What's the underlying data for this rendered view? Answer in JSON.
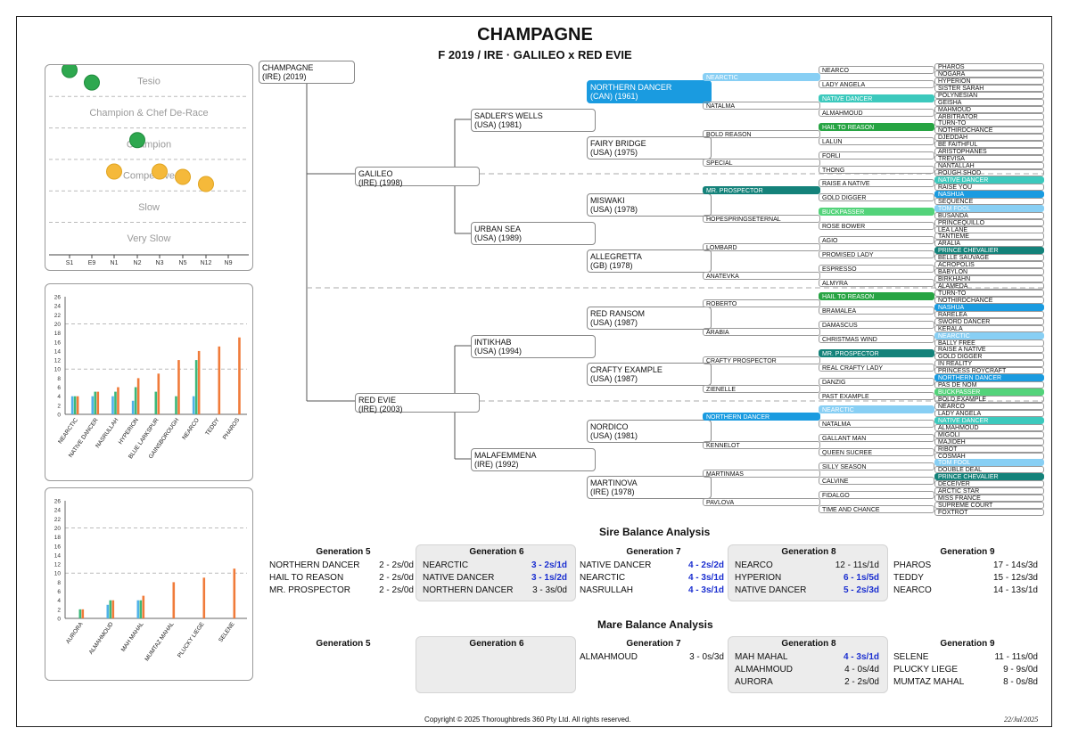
{
  "title": "CHAMPAGNE",
  "subtitle": "F 2019 / IRE · GALILEO x RED EVIE",
  "colors": {
    "blue": "#1a9be0",
    "lightblue": "#88cff4",
    "green": "#27a443",
    "lightgreen": "#53d37a",
    "teal": "#14827a",
    "aqua": "#3cc9bd"
  },
  "class_chart": {
    "bands": [
      "Tesio",
      "Champion & Chef De-Race",
      "Champion",
      "Competitive",
      "Slow",
      "Very Slow"
    ],
    "x_labels": [
      "S1",
      "E9",
      "N1",
      "N2",
      "N3",
      "N5",
      "N12",
      "N9"
    ],
    "dots": [
      {
        "x": "S1",
        "band": 0,
        "pos": "above",
        "color": "green"
      },
      {
        "x": "E9",
        "band": 0,
        "pos": "mid",
        "color": "green"
      },
      {
        "x": "N2",
        "band": 2,
        "pos": "upper",
        "color": "green"
      },
      {
        "x": "N1",
        "band": 3,
        "pos": "upper",
        "color": "yellow"
      },
      {
        "x": "N3",
        "band": 3,
        "pos": "upper",
        "color": "yellow"
      },
      {
        "x": "N5",
        "band": 3,
        "pos": "mid",
        "color": "yellow"
      },
      {
        "x": "N12",
        "band": 3,
        "pos": "low",
        "color": "yellow"
      }
    ]
  },
  "chart_data": [
    {
      "type": "bar",
      "title": "",
      "ylim": [
        0,
        26
      ],
      "y_ticks": [
        0,
        2,
        4,
        6,
        8,
        10,
        12,
        14,
        16,
        18,
        20,
        22,
        24,
        26
      ],
      "categories": [
        "NEARCTIC",
        "NATIVE DANCER",
        "NASRULLAH",
        "HYPERION",
        "BLUE LARKSPUR",
        "GAINSBOROUGH",
        "NEARCO",
        "TEDDY",
        "PHAROS"
      ],
      "series": [
        {
          "name": "blue",
          "color": "#4fb2e8",
          "values": [
            4,
            4,
            4,
            3,
            0,
            0,
            4,
            0,
            0
          ]
        },
        {
          "name": "green",
          "color": "#3cb87a",
          "values": [
            4,
            5,
            5,
            6,
            5,
            4,
            12,
            0,
            0
          ]
        },
        {
          "name": "orange",
          "color": "#f07b3a",
          "values": [
            4,
            5,
            6,
            8,
            9,
            12,
            14,
            15,
            17
          ]
        }
      ]
    },
    {
      "type": "bar",
      "title": "",
      "ylim": [
        0,
        26
      ],
      "y_ticks": [
        0,
        2,
        4,
        6,
        8,
        10,
        12,
        14,
        16,
        18,
        20,
        22,
        24,
        26
      ],
      "categories": [
        "AURORA",
        "ALMAHMOUD",
        "MAH MAHAL",
        "MUMTAZ MAHAL",
        "PLUCKY LIEGE",
        "SELENE"
      ],
      "series": [
        {
          "name": "blue",
          "color": "#4fb2e8",
          "values": [
            0,
            3,
            4,
            0,
            0,
            0
          ]
        },
        {
          "name": "green",
          "color": "#3cb87a",
          "values": [
            2,
            4,
            4,
            0,
            0,
            0
          ]
        },
        {
          "name": "orange",
          "color": "#f07b3a",
          "values": [
            2,
            4,
            5,
            8,
            9,
            11
          ]
        }
      ]
    }
  ],
  "pedigree": {
    "gen0": {
      "name": "CHAMPAGNE",
      "meta": "(IRE) (2019)"
    },
    "gen1": [
      {
        "name": "GALILEO",
        "meta": "(IRE) (1998)"
      },
      {
        "name": "RED EVIE",
        "meta": "(IRE) (2003)"
      }
    ],
    "gen2": [
      {
        "name": "SADLER'S WELLS",
        "meta": "(USA) (1981)"
      },
      {
        "name": "URBAN SEA",
        "meta": "(USA) (1989)"
      },
      {
        "name": "INTIKHAB",
        "meta": "(USA) (1994)"
      },
      {
        "name": "MALAFEMMENA",
        "meta": "(IRE) (1992)"
      }
    ],
    "gen3": [
      {
        "name": "NORTHERN DANCER",
        "meta": "(CAN) (1961)",
        "hl": "blue"
      },
      {
        "name": "FAIRY BRIDGE",
        "meta": "(USA) (1975)"
      },
      {
        "name": "MISWAKI",
        "meta": "(USA) (1978)"
      },
      {
        "name": "ALLEGRETTA",
        "meta": "(GB) (1978)"
      },
      {
        "name": "RED RANSOM",
        "meta": "(USA) (1987)"
      },
      {
        "name": "CRAFTY EXAMPLE",
        "meta": "(USA) (1987)"
      },
      {
        "name": "NORDICO",
        "meta": "(USA) (1981)"
      },
      {
        "name": "MARTINOVA",
        "meta": "(IRE) (1978)"
      }
    ],
    "gen4": [
      {
        "name": "NEARCTIC",
        "hl": "lightblue"
      },
      {
        "name": "NATALMA"
      },
      {
        "name": "BOLD REASON"
      },
      {
        "name": "SPECIAL"
      },
      {
        "name": "MR. PROSPECTOR",
        "hl": "teal"
      },
      {
        "name": "HOPESPRINGSETERNAL"
      },
      {
        "name": "LOMBARD"
      },
      {
        "name": "ANATEVKA"
      },
      {
        "name": "ROBERTO"
      },
      {
        "name": "ARABIA"
      },
      {
        "name": "CRAFTY PROSPECTOR"
      },
      {
        "name": "ZIENELLE"
      },
      {
        "name": "NORTHERN DANCER",
        "hl": "blue"
      },
      {
        "name": "KENNELOT"
      },
      {
        "name": "MARTINMAS"
      },
      {
        "name": "PAVLOVA"
      }
    ],
    "gen5": [
      {
        "name": "NEARCO"
      },
      {
        "name": "LADY ANGELA"
      },
      {
        "name": "NATIVE DANCER",
        "hl": "aqua"
      },
      {
        "name": "ALMAHMOUD"
      },
      {
        "name": "HAIL TO REASON",
        "hl": "green"
      },
      {
        "name": "LALUN"
      },
      {
        "name": "FORLI"
      },
      {
        "name": "THONG"
      },
      {
        "name": "RAISE A NATIVE"
      },
      {
        "name": "GOLD DIGGER"
      },
      {
        "name": "BUCKPASSER",
        "hl": "lightgreen"
      },
      {
        "name": "ROSE BOWER"
      },
      {
        "name": "AGIO"
      },
      {
        "name": "PROMISED LADY"
      },
      {
        "name": "ESPRESSO"
      },
      {
        "name": "ALMYRA"
      },
      {
        "name": "HAIL TO REASON",
        "hl": "green"
      },
      {
        "name": "BRAMALEA"
      },
      {
        "name": "DAMASCUS"
      },
      {
        "name": "CHRISTMAS WIND"
      },
      {
        "name": "MR. PROSPECTOR",
        "hl": "teal"
      },
      {
        "name": "REAL CRAFTY LADY"
      },
      {
        "name": "DANZIG"
      },
      {
        "name": "PAST EXAMPLE"
      },
      {
        "name": "NEARCTIC",
        "hl": "lightblue"
      },
      {
        "name": "NATALMA"
      },
      {
        "name": "GALLANT MAN"
      },
      {
        "name": "QUEEN SUCREE"
      },
      {
        "name": "SILLY SEASON"
      },
      {
        "name": "CALVINE"
      },
      {
        "name": "FIDALGO"
      },
      {
        "name": "TIME AND CHANCE"
      }
    ],
    "gen6": [
      {
        "name": "PHAROS"
      },
      {
        "name": "NOGARA"
      },
      {
        "name": "HYPERION"
      },
      {
        "name": "SISTER SARAH"
      },
      {
        "name": "POLYNESIAN"
      },
      {
        "name": "GEISHA"
      },
      {
        "name": "MAHMOUD"
      },
      {
        "name": "ARBITRATOR"
      },
      {
        "name": "TURN-TO"
      },
      {
        "name": "NOTHIRDCHANCE"
      },
      {
        "name": "DJEDDAH"
      },
      {
        "name": "BE FAITHFUL"
      },
      {
        "name": "ARISTOPHANES"
      },
      {
        "name": "TREVISA"
      },
      {
        "name": "NANTALLAH"
      },
      {
        "name": "ROUGH SHOD"
      },
      {
        "name": "NATIVE DANCER",
        "hl": "aqua"
      },
      {
        "name": "RAISE YOU"
      },
      {
        "name": "NASHUA",
        "hl": "blue"
      },
      {
        "name": "SEQUENCE"
      },
      {
        "name": "TOM FOOL",
        "hl": "lightblue"
      },
      {
        "name": "BUSANDA"
      },
      {
        "name": "PRINCEQUILLO"
      },
      {
        "name": "LEA LANE"
      },
      {
        "name": "TANTIEME"
      },
      {
        "name": "ARALIA"
      },
      {
        "name": "PRINCE CHEVALIER",
        "hl": "teal"
      },
      {
        "name": "BELLE SAUVAGE"
      },
      {
        "name": "ACROPOLIS"
      },
      {
        "name": "BABYLON"
      },
      {
        "name": "BIRKHAHN"
      },
      {
        "name": "ALAMEDA"
      },
      {
        "name": "TURN-TO"
      },
      {
        "name": "NOTHIRDCHANCE"
      },
      {
        "name": "NASHUA",
        "hl": "blue"
      },
      {
        "name": "RARELEA"
      },
      {
        "name": "SWORD DANCER"
      },
      {
        "name": "KERALA"
      },
      {
        "name": "NEARCTIC",
        "hl": "lightblue"
      },
      {
        "name": "BALLY FREE"
      },
      {
        "name": "RAISE A NATIVE"
      },
      {
        "name": "GOLD DIGGER"
      },
      {
        "name": "IN REALITY"
      },
      {
        "name": "PRINCESS ROYCRAFT"
      },
      {
        "name": "NORTHERN DANCER",
        "hl": "blue"
      },
      {
        "name": "PAS DE NOM"
      },
      {
        "name": "BUCKPASSER",
        "hl": "lightgreen"
      },
      {
        "name": "BOLD EXAMPLE"
      },
      {
        "name": "NEARCO"
      },
      {
        "name": "LADY ANGELA"
      },
      {
        "name": "NATIVE DANCER",
        "hl": "aqua"
      },
      {
        "name": "ALMAHMOUD"
      },
      {
        "name": "MIGOLI"
      },
      {
        "name": "MAJIDEH"
      },
      {
        "name": "RIBOT"
      },
      {
        "name": "COSMAH"
      },
      {
        "name": "TOM FOOL",
        "hl": "lightblue"
      },
      {
        "name": "DOUBLE DEAL"
      },
      {
        "name": "PRINCE CHEVALIER",
        "hl": "teal"
      },
      {
        "name": "DECEIVER"
      },
      {
        "name": "ARCTIC STAR"
      },
      {
        "name": "MISS FRANCE"
      },
      {
        "name": "SUPREME COURT"
      },
      {
        "name": "FOXTROT"
      }
    ]
  },
  "sire_balance": {
    "title": "Sire Balance Analysis",
    "generations": [
      {
        "label": "Generation 5",
        "shaded": false,
        "rows": [
          [
            "NORTHERN DANCER",
            "2 - 2s/0d",
            false
          ],
          [
            "HAIL TO REASON",
            "2 - 2s/0d",
            false
          ],
          [
            "MR. PROSPECTOR",
            "2 - 2s/0d",
            false
          ]
        ]
      },
      {
        "label": "Generation 6",
        "shaded": true,
        "rows": [
          [
            "NEARCTIC",
            "3 - 2s/1d",
            true
          ],
          [
            "NATIVE DANCER",
            "3 - 1s/2d",
            true
          ],
          [
            "NORTHERN DANCER",
            "3 - 3s/0d",
            false
          ]
        ]
      },
      {
        "label": "Generation 7",
        "shaded": false,
        "rows": [
          [
            "NATIVE DANCER",
            "4 - 2s/2d",
            true
          ],
          [
            "NEARCTIC",
            "4 - 3s/1d",
            true
          ],
          [
            "NASRULLAH",
            "4 - 3s/1d",
            true
          ]
        ]
      },
      {
        "label": "Generation 8",
        "shaded": true,
        "rows": [
          [
            "NEARCO",
            "12 - 11s/1d",
            false
          ],
          [
            "HYPERION",
            "6 - 1s/5d",
            true
          ],
          [
            "NATIVE DANCER",
            "5 - 2s/3d",
            true
          ]
        ]
      },
      {
        "label": "Generation 9",
        "shaded": false,
        "rows": [
          [
            "PHAROS",
            "17 - 14s/3d",
            false
          ],
          [
            "TEDDY",
            "15 - 12s/3d",
            false
          ],
          [
            "NEARCO",
            "14 - 13s/1d",
            false
          ]
        ]
      }
    ]
  },
  "mare_balance": {
    "title": "Mare Balance Analysis",
    "generations": [
      {
        "label": "Generation 5",
        "shaded": false,
        "rows": []
      },
      {
        "label": "Generation 6",
        "shaded": true,
        "rows": []
      },
      {
        "label": "Generation 7",
        "shaded": false,
        "rows": [
          [
            "ALMAHMOUD",
            "3 - 0s/3d",
            false
          ]
        ]
      },
      {
        "label": "Generation 8",
        "shaded": true,
        "rows": [
          [
            "MAH MAHAL",
            "4 - 3s/1d",
            true
          ],
          [
            "ALMAHMOUD",
            "4 - 0s/4d",
            false
          ],
          [
            "AURORA",
            "2 - 2s/0d",
            false
          ]
        ]
      },
      {
        "label": "Generation 9",
        "shaded": false,
        "rows": [
          [
            "SELENE",
            "11 - 11s/0d",
            false
          ],
          [
            "PLUCKY LIEGE",
            "9 - 9s/0d",
            false
          ],
          [
            "MUMTAZ MAHAL",
            "8 - 0s/8d",
            false
          ]
        ]
      }
    ]
  },
  "footer": {
    "copyright": "Copyright © 2025 Thoroughbreds 360 Pty Ltd. All rights reserved.",
    "date": "22/Jul/2025"
  }
}
